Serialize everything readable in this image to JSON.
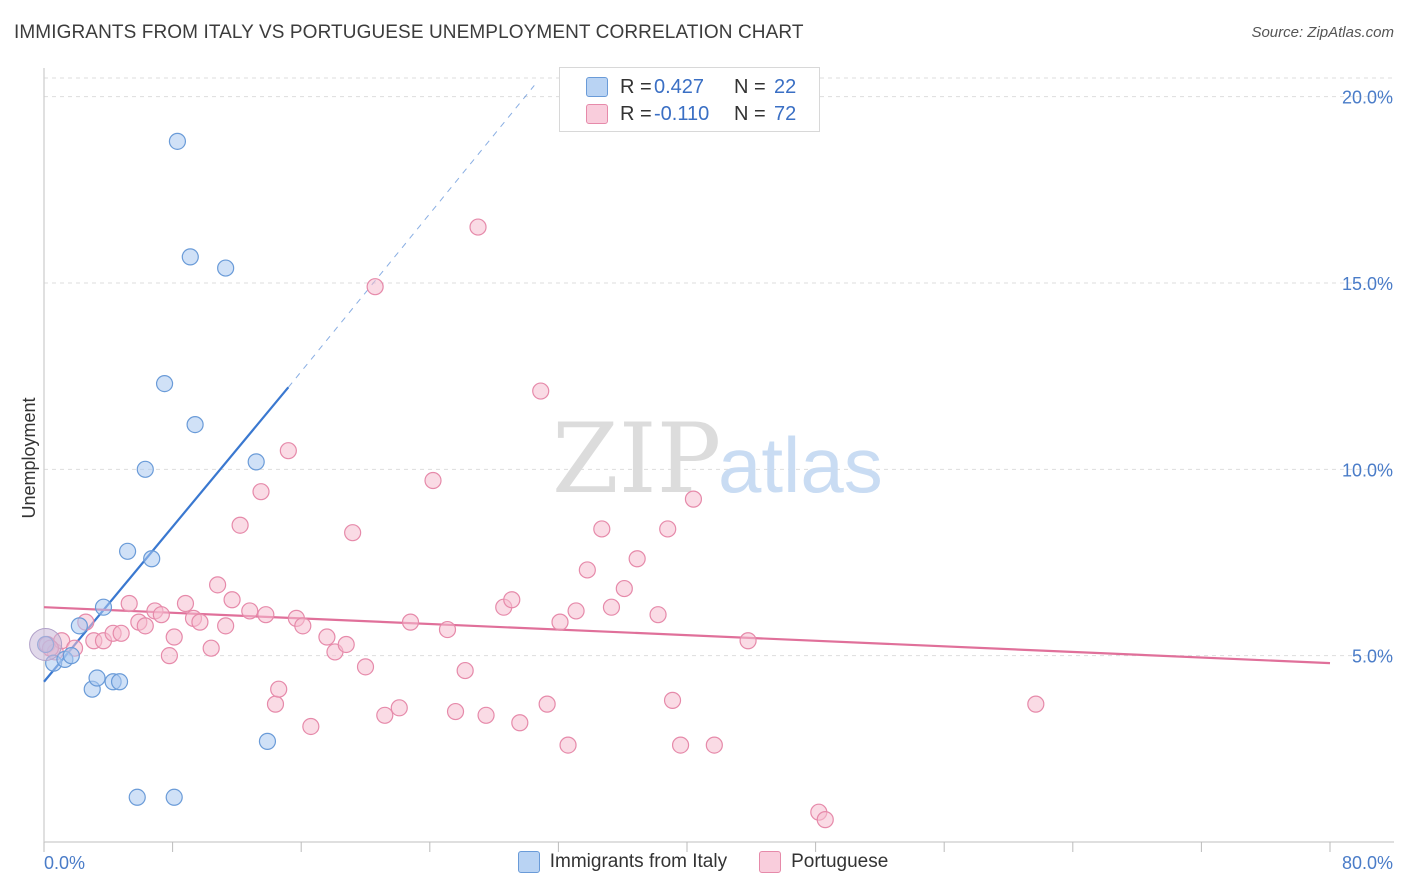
{
  "header": {
    "title": "IMMIGRANTS FROM ITALY VS PORTUGUESE UNEMPLOYMENT CORRELATION CHART",
    "source": "Source: ZipAtlas.com"
  },
  "watermark": {
    "zip": "ZIP",
    "atlas": "atlas"
  },
  "legend": {
    "rows": [
      {
        "label": "R =",
        "r": "0.427",
        "n_label": "N =",
        "n": "22"
      },
      {
        "label": "R =",
        "r": "-0.110",
        "n_label": "N =",
        "n": "72"
      }
    ]
  },
  "bottom_legend": {
    "italy": "Immigrants from Italy",
    "portuguese": "Portuguese"
  },
  "colors": {
    "italy_fill": "#a9c8f0",
    "italy_stroke": "#6a9bd8",
    "italy_line": "#3a78d0",
    "port_fill": "#f6bdd0",
    "port_stroke": "#e68aaa",
    "port_line": "#e0709a",
    "axis_text": "#4a7cc8",
    "grid": "#dddddd"
  },
  "chart_data": {
    "type": "scatter",
    "title": "IMMIGRANTS FROM ITALY VS PORTUGUESE UNEMPLOYMENT CORRELATION CHART",
    "xlabel": "",
    "ylabel": "Unemployment",
    "xlim": [
      0,
      80
    ],
    "ylim": [
      0,
      20.5
    ],
    "x_tick_labels": [
      "0.0%",
      "80.0%"
    ],
    "y_ticks": [
      5,
      10,
      15,
      20
    ],
    "y_tick_labels": [
      "5.0%",
      "10.0%",
      "15.0%",
      "20.0%"
    ],
    "series": [
      {
        "name": "Immigrants from Italy",
        "R": 0.427,
        "N": 22,
        "points": [
          [
            0.1,
            5.3
          ],
          [
            0.6,
            4.8
          ],
          [
            1.3,
            4.9
          ],
          [
            1.7,
            5.0
          ],
          [
            2.2,
            5.8
          ],
          [
            3.0,
            4.1
          ],
          [
            3.3,
            4.4
          ],
          [
            3.7,
            6.3
          ],
          [
            4.3,
            4.3
          ],
          [
            4.7,
            4.3
          ],
          [
            5.2,
            7.8
          ],
          [
            5.8,
            1.2
          ],
          [
            6.3,
            10.0
          ],
          [
            6.7,
            7.6
          ],
          [
            7.5,
            12.3
          ],
          [
            8.1,
            1.2
          ],
          [
            8.3,
            18.8
          ],
          [
            9.1,
            15.7
          ],
          [
            9.4,
            11.2
          ],
          [
            11.3,
            15.4
          ],
          [
            13.2,
            10.2
          ],
          [
            13.9,
            2.7
          ]
        ],
        "trend": {
          "x0": 0,
          "y0": 4.3,
          "x1": 15.2,
          "y1": 12.2,
          "dashed_to_x": 30.5,
          "dashed_to_y": 20.3
        }
      },
      {
        "name": "Portuguese",
        "R": -0.11,
        "N": 72,
        "points": [
          [
            0.2,
            5.3
          ],
          [
            0.7,
            5.1
          ],
          [
            1.1,
            5.4
          ],
          [
            1.9,
            5.2
          ],
          [
            2.6,
            5.9
          ],
          [
            3.1,
            5.4
          ],
          [
            3.7,
            5.4
          ],
          [
            4.3,
            5.6
          ],
          [
            4.8,
            5.6
          ],
          [
            5.3,
            6.4
          ],
          [
            5.9,
            5.9
          ],
          [
            6.3,
            5.8
          ],
          [
            6.9,
            6.2
          ],
          [
            7.3,
            6.1
          ],
          [
            7.8,
            5.0
          ],
          [
            8.1,
            5.5
          ],
          [
            8.8,
            6.4
          ],
          [
            9.3,
            6.0
          ],
          [
            9.7,
            5.9
          ],
          [
            10.4,
            5.2
          ],
          [
            10.8,
            6.9
          ],
          [
            11.3,
            5.8
          ],
          [
            11.7,
            6.5
          ],
          [
            12.2,
            8.5
          ],
          [
            12.8,
            6.2
          ],
          [
            13.5,
            9.4
          ],
          [
            13.8,
            6.1
          ],
          [
            14.4,
            3.7
          ],
          [
            14.6,
            4.1
          ],
          [
            15.2,
            10.5
          ],
          [
            15.7,
            6.0
          ],
          [
            16.1,
            5.8
          ],
          [
            16.6,
            3.1
          ],
          [
            17.6,
            5.5
          ],
          [
            18.1,
            5.1
          ],
          [
            18.8,
            5.3
          ],
          [
            19.2,
            8.3
          ],
          [
            20.0,
            4.7
          ],
          [
            20.6,
            14.9
          ],
          [
            21.2,
            3.4
          ],
          [
            22.1,
            3.6
          ],
          [
            22.8,
            5.9
          ],
          [
            24.2,
            9.7
          ],
          [
            25.1,
            5.7
          ],
          [
            25.6,
            3.5
          ],
          [
            26.2,
            4.6
          ],
          [
            27.0,
            16.5
          ],
          [
            27.5,
            3.4
          ],
          [
            28.6,
            6.3
          ],
          [
            29.1,
            6.5
          ],
          [
            29.6,
            3.2
          ],
          [
            30.9,
            12.1
          ],
          [
            31.3,
            3.7
          ],
          [
            32.1,
            5.9
          ],
          [
            32.6,
            2.6
          ],
          [
            33.1,
            6.2
          ],
          [
            33.8,
            7.3
          ],
          [
            34.7,
            8.4
          ],
          [
            35.3,
            6.3
          ],
          [
            36.1,
            6.8
          ],
          [
            36.9,
            7.6
          ],
          [
            38.2,
            6.1
          ],
          [
            38.8,
            8.4
          ],
          [
            39.1,
            3.8
          ],
          [
            39.6,
            2.6
          ],
          [
            40.4,
            9.2
          ],
          [
            41.7,
            2.6
          ],
          [
            43.8,
            5.4
          ],
          [
            48.2,
            0.8
          ],
          [
            48.6,
            0.6
          ],
          [
            61.7,
            3.7
          ],
          [
            0.4,
            5.2
          ]
        ],
        "trend": {
          "x0": 0,
          "y0": 6.3,
          "x1": 80,
          "y1": 4.8
        }
      }
    ]
  }
}
